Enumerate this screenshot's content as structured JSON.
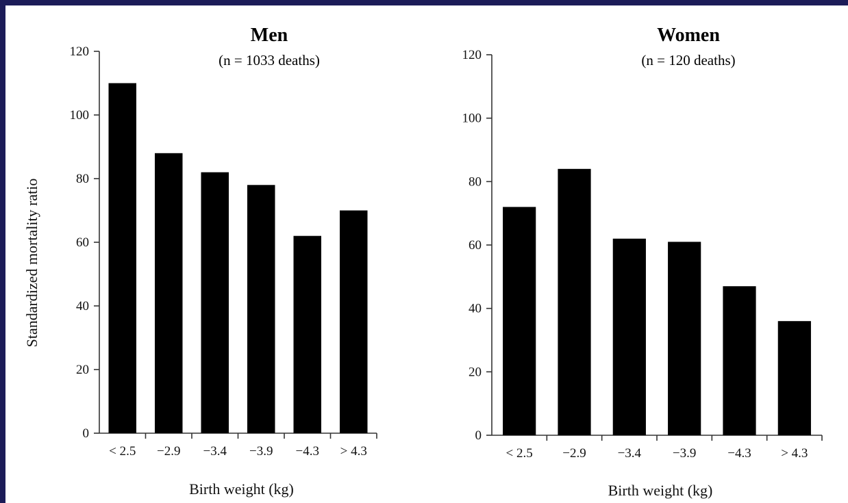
{
  "colors": {
    "slide_background": "#1c1c58",
    "plot_background": "#ffffff",
    "bar": "#000000"
  },
  "chart_data": [
    {
      "type": "bar",
      "title": "Men",
      "subtitle": "(n = 1033 deaths)",
      "xlabel": "Birth weight (kg)",
      "ylabel": "Standardized mortality ratio",
      "categories": [
        "< 2.5",
        "−2.9",
        "−3.4",
        "−3.9",
        "−4.3",
        "> 4.3"
      ],
      "values": [
        110,
        88,
        82,
        78,
        62,
        70
      ],
      "ylim": [
        0,
        120
      ],
      "yticks": [
        0,
        20,
        40,
        60,
        80,
        100,
        120
      ],
      "grid": false
    },
    {
      "type": "bar",
      "title": "Women",
      "subtitle": "(n = 120 deaths)",
      "xlabel": "Birth weight (kg)",
      "ylabel": "",
      "categories": [
        "< 2.5",
        "−2.9",
        "−3.4",
        "−3.9",
        "−4.3",
        "> 4.3"
      ],
      "values": [
        72,
        84,
        62,
        61,
        47,
        36
      ],
      "ylim": [
        0,
        120
      ],
      "yticks": [
        0,
        20,
        40,
        60,
        80,
        100,
        120
      ],
      "grid": false
    }
  ]
}
